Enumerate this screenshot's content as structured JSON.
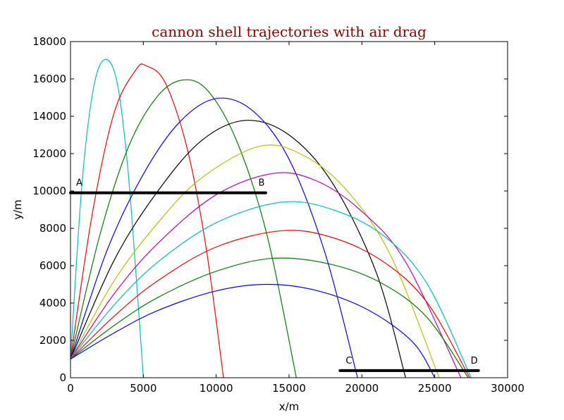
{
  "chart_data": {
    "type": "line",
    "title": "cannon shell trajectories with air drag",
    "title_color": "#8b0000",
    "xlabel": "x/m",
    "ylabel": "y/m",
    "xlim": [
      0,
      30000
    ],
    "ylim": [
      0,
      18000
    ],
    "xticks": [
      "0",
      "5000",
      "10000",
      "15000",
      "20000",
      "25000",
      "30000"
    ],
    "yticks": [
      "0",
      "2000",
      "4000",
      "6000",
      "8000",
      "10000",
      "12000",
      "14000",
      "16000",
      "18000"
    ],
    "grid": false,
    "legend": "none",
    "series": [
      {
        "color": "#00bfbf",
        "x": [
          0,
          800,
          1600,
          2400,
          3200,
          3900,
          4500,
          5000
        ],
        "y": [
          1000,
          10500,
          15600,
          17050,
          15800,
          11500,
          5500,
          0
        ]
      },
      {
        "color": "#ff0000",
        "x": [
          0,
          1500,
          3000,
          4500,
          5200,
          6500,
          8000,
          9300,
          10500
        ],
        "y": [
          1000,
          8800,
          14200,
          16500,
          16700,
          15800,
          12300,
          7000,
          0
        ]
      },
      {
        "color": "#008000",
        "x": [
          0,
          2000,
          4000,
          6000,
          7800,
          9500,
          11500,
          13500,
          15500
        ],
        "y": [
          1000,
          7600,
          12400,
          15100,
          15950,
          15300,
          12500,
          7600,
          0
        ]
      },
      {
        "color": "#0000ff",
        "x": [
          0,
          2500,
          5000,
          7500,
          10000,
          12500,
          15000,
          17500,
          19700
        ],
        "y": [
          1000,
          6800,
          10900,
          13700,
          14950,
          14300,
          11700,
          6600,
          0
        ]
      },
      {
        "color": "#000000",
        "x": [
          0,
          3000,
          6000,
          9000,
          12000,
          15000,
          18000,
          21000,
          23000
        ],
        "y": [
          1000,
          6300,
          10000,
          12700,
          13780,
          13000,
          10400,
          5600,
          0
        ]
      },
      {
        "color": "#bfbf00",
        "x": [
          0,
          3000,
          6000,
          9000,
          13000,
          16000,
          19000,
          22000,
          25300
        ],
        "y": [
          1000,
          5200,
          8300,
          10700,
          12400,
          11900,
          10000,
          6500,
          0
        ]
      },
      {
        "color": "#bf00bf",
        "x": [
          0,
          3000,
          6000,
          10000,
          14000,
          17000,
          20000,
          23000,
          26800
        ],
        "y": [
          1000,
          4500,
          7200,
          9800,
          10950,
          10500,
          8900,
          6200,
          0
        ]
      },
      {
        "color": "#00bfbf",
        "x": [
          0,
          3000,
          6000,
          10000,
          14500,
          18000,
          21500,
          24500,
          27500
        ],
        "y": [
          1000,
          3900,
          6200,
          8300,
          9400,
          9000,
          7600,
          5000,
          0
        ]
      },
      {
        "color": "#ff0000",
        "x": [
          0,
          3000,
          6000,
          10000,
          14500,
          18000,
          21500,
          24500,
          27400
        ],
        "y": [
          1000,
          3300,
          5200,
          7000,
          7870,
          7500,
          6200,
          4000,
          0
        ]
      },
      {
        "color": "#008000",
        "x": [
          0,
          3000,
          6000,
          10000,
          14000,
          18000,
          21500,
          24500,
          27300
        ],
        "y": [
          1000,
          2800,
          4300,
          5700,
          6400,
          6050,
          5000,
          3200,
          0
        ]
      },
      {
        "color": "#0000ff",
        "x": [
          0,
          3000,
          6000,
          10000,
          13500,
          17000,
          20500,
          23500,
          25000
        ],
        "y": [
          1000,
          2400,
          3600,
          4650,
          5000,
          4650,
          3600,
          1900,
          0
        ]
      }
    ],
    "reference_lines": [
      {
        "x": [
          0,
          13400
        ],
        "y": [
          9900,
          9900
        ],
        "start_label": "A",
        "end_label": "B"
      },
      {
        "x": [
          18500,
          28000
        ],
        "y": [
          380,
          380
        ],
        "start_label": "C",
        "end_label": "D"
      }
    ]
  }
}
